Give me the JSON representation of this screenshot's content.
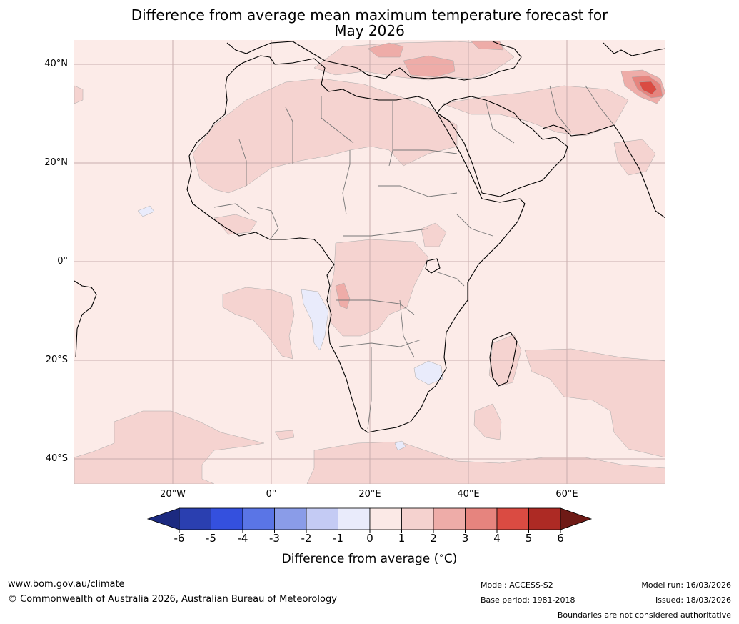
{
  "title": {
    "line1": "Difference from average mean maximum temperature forecast for",
    "line2": "May 2026"
  },
  "map": {
    "lat_labels": [
      "40°N",
      "20°N",
      "0°",
      "20°S",
      "40°S"
    ],
    "lon_labels": [
      "20°W",
      "0°",
      "20°E",
      "40°E",
      "60°E"
    ],
    "extent": {
      "lon_min": -40,
      "lon_max": 80,
      "lat_min": -45,
      "lat_max": 45
    },
    "base_anomaly_c": "0 to 1",
    "regions": [
      {
        "area": "Sahara",
        "anomaly_c": "1 to 2"
      },
      {
        "area": "Arabian Peninsula north",
        "anomaly_c": "1 to 2"
      },
      {
        "area": "Central Africa / Congo basin",
        "anomaly_c": "1 to 2"
      },
      {
        "area": "Angola coast",
        "anomaly_c": "2 to 3"
      },
      {
        "area": "Turkey",
        "anomaly_c": "2 to 3"
      },
      {
        "area": "Northern Pakistan / Himalaya",
        "anomaly_c": "3 to 6"
      },
      {
        "area": "Angolan coastal ocean",
        "anomaly_c": "-1 to 0"
      },
      {
        "area": "Mozambique coast",
        "anomaly_c": "-1 to 0"
      }
    ]
  },
  "colorbar": {
    "ticks": [
      "-6",
      "-5",
      "-4",
      "-3",
      "-2",
      "-1",
      "0",
      "1",
      "2",
      "3",
      "4",
      "5",
      "6"
    ],
    "colors": [
      "#1c2a80",
      "#2a3fb0",
      "#3450de",
      "#5a75e6",
      "#8a9ce8",
      "#c4cbf4",
      "#e9ebfb",
      "#fbe9e6",
      "#f5d2cf",
      "#eeaca8",
      "#e6847e",
      "#da4b42",
      "#ad2a24",
      "#6e1a16"
    ],
    "label": "Difference from average (",
    "label_unit": "C)"
  },
  "footer": {
    "website": "www.bom.gov.au/climate",
    "copyright": "© Commonwealth of Australia 2026, Australian Bureau of Meteorology",
    "model": "Model: ACCESS-S2",
    "base_period": "Base period: 1981-2018",
    "model_run": "Model run: 16/03/2026",
    "issued": "Issued: 18/03/2026",
    "disclaimer": "Boundaries are not considered authoritative"
  }
}
